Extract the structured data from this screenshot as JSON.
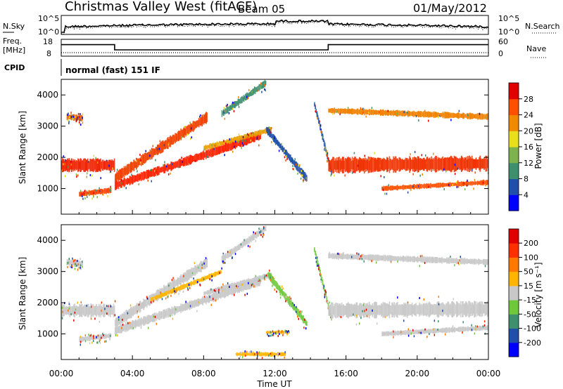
{
  "header": {
    "title": "Christmas Valley West (fitACF)",
    "beam": "Beam 05",
    "date": "01/May/2012"
  },
  "nsky_panel": {
    "left_label": "N.Sky",
    "right_label": "N.Search",
    "left_ticks": [
      "10^5",
      "10^0"
    ],
    "right_ticks": [
      "10^5",
      "10^0"
    ]
  },
  "freq_panel": {
    "left_label_line1": "Freq.",
    "left_label_line2": "[MHz]",
    "right_label": "Nave",
    "left_ticks": [
      "18",
      "8"
    ],
    "right_ticks": [
      "60",
      "0"
    ],
    "freq_steps": [
      {
        "t": 0,
        "mhz": 15.2
      },
      {
        "t": 3.0,
        "mhz": 11.5
      },
      {
        "t": 15.0,
        "mhz": 15.2
      },
      {
        "t": 24,
        "mhz": 15.2
      }
    ],
    "nave_level": 11
  },
  "cpid": {
    "label": "CPID",
    "mode": "normal (fast) 151 IF"
  },
  "chart_data": [
    {
      "type": "heatmap",
      "name": "power",
      "ylabel": "Slant Range [km]",
      "colorbar_label": "Power [dB]",
      "xlim": [
        0,
        24
      ],
      "ylim": [
        180,
        4500
      ],
      "ytick_labels": [
        "1000",
        "2000",
        "3000",
        "4000"
      ],
      "colorbar_ticks": [
        "28",
        "24",
        "20",
        "16",
        "12",
        "8",
        "4"
      ],
      "colors": [
        "#0000ff",
        "#1f4fa8",
        "#3d8f6e",
        "#7db24e",
        "#e8e01c",
        "#f08a00",
        "#ff5000",
        "#e00000"
      ],
      "bands": [
        {
          "t_start": 0.0,
          "t_end": 3.0,
          "r_start": 1750,
          "r_end": 1750,
          "width": 380,
          "color": "#f02000"
        },
        {
          "t_start": 0.3,
          "t_end": 1.2,
          "r_start": 3300,
          "r_end": 3250,
          "width": 180,
          "color": "#f06000"
        },
        {
          "t_start": 1.0,
          "t_end": 2.8,
          "r_start": 820,
          "r_end": 950,
          "width": 160,
          "color": "#ff4000"
        },
        {
          "t_start": 3.0,
          "t_end": 11.2,
          "r_start": 1100,
          "r_end": 2700,
          "width": 260,
          "color": "#ff2000"
        },
        {
          "t_start": 3.0,
          "t_end": 8.2,
          "r_start": 1350,
          "r_end": 3300,
          "width": 320,
          "color": "#f04000"
        },
        {
          "t_start": 8.0,
          "t_end": 11.8,
          "r_start": 2300,
          "r_end": 2900,
          "width": 160,
          "color": "#e8a000"
        },
        {
          "t_start": 9.0,
          "t_end": 11.5,
          "r_start": 3400,
          "r_end": 4400,
          "width": 200,
          "color": "#3d8f6e"
        },
        {
          "t_start": 11.5,
          "t_end": 13.8,
          "r_start": 2900,
          "r_end": 1300,
          "width": 220,
          "color": "#1f4fa8"
        },
        {
          "t_start": 14.2,
          "t_end": 15.2,
          "r_start": 3700,
          "r_end": 1400,
          "width": 170,
          "color": "#1f4fa8"
        },
        {
          "t_start": 15.0,
          "t_end": 24.0,
          "r_start": 1750,
          "r_end": 1800,
          "width": 450,
          "color": "#f03000"
        },
        {
          "t_start": 15.0,
          "t_end": 24.0,
          "r_start": 3500,
          "r_end": 3300,
          "width": 180,
          "color": "#f08000"
        },
        {
          "t_start": 18.0,
          "t_end": 24.0,
          "r_start": 1000,
          "r_end": 1200,
          "width": 150,
          "color": "#ff5000"
        }
      ]
    },
    {
      "type": "heatmap",
      "name": "velocity",
      "ylabel": "Slant Range [km]",
      "colorbar_label": "Velocity [m s⁻¹]",
      "xlabel": "Time UT",
      "xlim": [
        0,
        24
      ],
      "ylim": [
        180,
        4500
      ],
      "ytick_labels": [
        "1000",
        "2000",
        "3000",
        "4000"
      ],
      "xtick_labels": [
        "00:00",
        "04:00",
        "08:00",
        "12:00",
        "16:00",
        "20:00",
        "00:00"
      ],
      "colorbar_ticks": [
        "200",
        "100",
        "50",
        "15",
        "-15",
        "-50",
        "-100",
        "-200"
      ],
      "colors": [
        "#0000ff",
        "#1f4fa8",
        "#3d8f6e",
        "#6ec83c",
        "#c8c8c8",
        "#ffb400",
        "#ff7800",
        "#ff3000",
        "#e00000"
      ],
      "bands": [
        {
          "t_start": 0.0,
          "t_end": 3.0,
          "r_start": 1750,
          "r_end": 1750,
          "width": 380,
          "color": "#c8c8c8"
        },
        {
          "t_start": 0.3,
          "t_end": 1.2,
          "r_start": 3300,
          "r_end": 3250,
          "width": 180,
          "color": "#c8c8c8"
        },
        {
          "t_start": 1.0,
          "t_end": 2.8,
          "r_start": 820,
          "r_end": 950,
          "width": 160,
          "color": "#c8c8c8"
        },
        {
          "t_start": 3.0,
          "t_end": 11.2,
          "r_start": 1100,
          "r_end": 2700,
          "width": 260,
          "color": "#c8c8c8"
        },
        {
          "t_start": 3.0,
          "t_end": 8.2,
          "r_start": 1350,
          "r_end": 3300,
          "width": 320,
          "color": "#c8c8c8"
        },
        {
          "t_start": 5.0,
          "t_end": 9.0,
          "r_start": 2100,
          "r_end": 3000,
          "width": 140,
          "color": "#ffb400"
        },
        {
          "t_start": 8.0,
          "t_end": 11.8,
          "r_start": 2300,
          "r_end": 2900,
          "width": 160,
          "color": "#c8c8c8"
        },
        {
          "t_start": 9.0,
          "t_end": 11.5,
          "r_start": 3400,
          "r_end": 4400,
          "width": 200,
          "color": "#c8c8c8"
        },
        {
          "t_start": 11.6,
          "t_end": 13.8,
          "r_start": 2900,
          "r_end": 1300,
          "width": 220,
          "color": "#6ec83c"
        },
        {
          "t_start": 14.2,
          "t_end": 15.2,
          "r_start": 3700,
          "r_end": 1400,
          "width": 170,
          "color": "#6ec83c"
        },
        {
          "t_start": 15.0,
          "t_end": 24.0,
          "r_start": 1750,
          "r_end": 1800,
          "width": 450,
          "color": "#c8c8c8"
        },
        {
          "t_start": 15.0,
          "t_end": 24.0,
          "r_start": 3500,
          "r_end": 3300,
          "width": 180,
          "color": "#c8c8c8"
        },
        {
          "t_start": 18.0,
          "t_end": 24.0,
          "r_start": 1000,
          "r_end": 1200,
          "width": 150,
          "color": "#c8c8c8"
        },
        {
          "t_start": 11.5,
          "t_end": 12.8,
          "r_start": 1050,
          "r_end": 1050,
          "width": 90,
          "color": "#ffb400"
        },
        {
          "t_start": 9.8,
          "t_end": 12.6,
          "r_start": 350,
          "r_end": 350,
          "width": 120,
          "color": "#ffb400"
        }
      ]
    }
  ]
}
